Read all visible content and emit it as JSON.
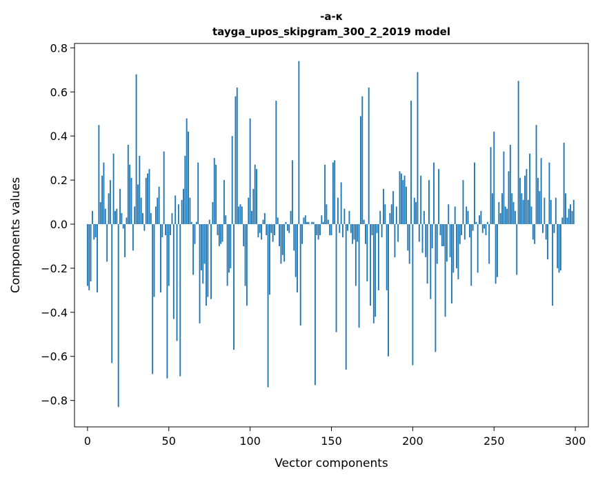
{
  "chart_data": {
    "type": "bar",
    "title": "-а-к",
    "subtitle": "tayga_upos_skipgram_300_2_2019 model",
    "xlabel": "Vector components",
    "ylabel": "Components values",
    "xlim": [
      -8,
      308
    ],
    "ylim": [
      -0.92,
      0.82
    ],
    "xticks": [
      0,
      50,
      100,
      150,
      200,
      250,
      300
    ],
    "yticks": [
      -0.8,
      -0.6,
      -0.4,
      -0.2,
      0.0,
      0.2,
      0.4,
      0.6,
      0.8
    ],
    "ytick_labels": [
      "−0.8",
      "−0.6",
      "−0.4",
      "−0.2",
      "0.0",
      "0.2",
      "0.4",
      "0.6",
      "0.8"
    ],
    "bar_color": "#1f77b4",
    "values": [
      -0.28,
      -0.3,
      -0.26,
      0.06,
      -0.07,
      -0.06,
      -0.31,
      0.45,
      0.1,
      0.22,
      0.28,
      0.07,
      -0.17,
      0.14,
      0.2,
      -0.63,
      0.32,
      0.06,
      0.07,
      -0.83,
      0.16,
      0.05,
      -0.02,
      -0.15,
      0.03,
      0.36,
      0.27,
      0.21,
      -0.12,
      0.08,
      0.68,
      0.18,
      0.31,
      0.12,
      0.05,
      -0.03,
      0.21,
      0.23,
      0.25,
      0.05,
      -0.68,
      -0.33,
      0.08,
      0.12,
      0.17,
      -0.31,
      -0.06,
      0.33,
      -0.05,
      -0.7,
      -0.28,
      -0.05,
      0.05,
      -0.43,
      0.13,
      -0.53,
      0.09,
      -0.69,
      0.11,
      0.16,
      0.31,
      0.48,
      0.42,
      0.12,
      0.01,
      -0.23,
      -0.09,
      0.01,
      0.28,
      -0.45,
      -0.21,
      -0.27,
      -0.18,
      -0.37,
      -0.33,
      0.02,
      -0.34,
      0.1,
      0.3,
      0.27,
      -0.05,
      -0.1,
      -0.09,
      -0.08,
      0.2,
      0.04,
      -0.28,
      -0.22,
      -0.2,
      0.4,
      -0.57,
      0.58,
      0.62,
      0.08,
      0.09,
      0.08,
      -0.1,
      -0.28,
      -0.37,
      0.12,
      0.48,
      0.06,
      0.16,
      0.27,
      0.25,
      -0.06,
      -0.04,
      -0.07,
      0.02,
      0.05,
      -0.05,
      -0.74,
      -0.32,
      -0.04,
      -0.08,
      -0.05,
      0.56,
      0.03,
      -0.1,
      -0.18,
      -0.14,
      -0.17,
      0.01,
      -0.03,
      -0.04,
      0.06,
      0.29,
      -0.12,
      -0.24,
      -0.31,
      0.74,
      -0.46,
      -0.09,
      0.03,
      0.04,
      0.01,
      0.01,
      0.0,
      0.01,
      0.01,
      -0.73,
      -0.05,
      -0.07,
      -0.05,
      0.04,
      0.01,
      0.27,
      0.09,
      0.02,
      -0.05,
      -0.05,
      0.28,
      0.29,
      -0.49,
      0.12,
      -0.04,
      0.19,
      -0.06,
      0.07,
      -0.66,
      -0.03,
      0.06,
      -0.04,
      -0.09,
      -0.07,
      -0.28,
      -0.08,
      -0.47,
      0.49,
      0.58,
      0.02,
      -0.09,
      -0.26,
      0.62,
      -0.37,
      -0.05,
      -0.45,
      -0.42,
      -0.04,
      -0.3,
      0.06,
      -0.06,
      0.16,
      0.09,
      -0.3,
      -0.6,
      0.05,
      0.09,
      0.15,
      -0.15,
      0.08,
      -0.08,
      0.24,
      0.23,
      0.2,
      0.22,
      0.17,
      -0.12,
      -0.18,
      0.56,
      -0.64,
      0.12,
      0.1,
      0.69,
      -0.08,
      0.22,
      -0.13,
      0.06,
      -0.15,
      -0.27,
      0.2,
      -0.34,
      -0.11,
      0.28,
      -0.58,
      -0.18,
      0.25,
      -0.05,
      -0.1,
      -0.1,
      -0.42,
      -0.17,
      0.09,
      -0.15,
      -0.36,
      -0.22,
      0.08,
      -0.2,
      -0.25,
      -0.09,
      -0.05,
      0.2,
      -0.07,
      0.08,
      0.06,
      -0.06,
      -0.28,
      -0.03,
      0.28,
      0.01,
      -0.22,
      0.04,
      0.06,
      -0.04,
      -0.02,
      -0.05,
      0.01,
      -0.18,
      0.35,
      0.14,
      0.42,
      -0.27,
      -0.24,
      0.1,
      0.05,
      0.14,
      0.33,
      0.08,
      0.07,
      0.24,
      0.36,
      0.14,
      0.1,
      0.06,
      -0.23,
      0.65,
      0.21,
      0.14,
      0.11,
      0.22,
      0.25,
      0.11,
      0.32,
      0.08,
      -0.07,
      -0.09,
      0.45,
      0.21,
      0.15,
      0.3,
      -0.04,
      0.12,
      -0.07,
      -0.16,
      0.28,
      0.11,
      -0.37,
      -0.04,
      0.12,
      -0.2,
      -0.22,
      -0.21,
      0.03,
      0.37,
      0.14,
      0.03,
      0.07,
      0.09,
      0.06,
      0.11
    ]
  }
}
